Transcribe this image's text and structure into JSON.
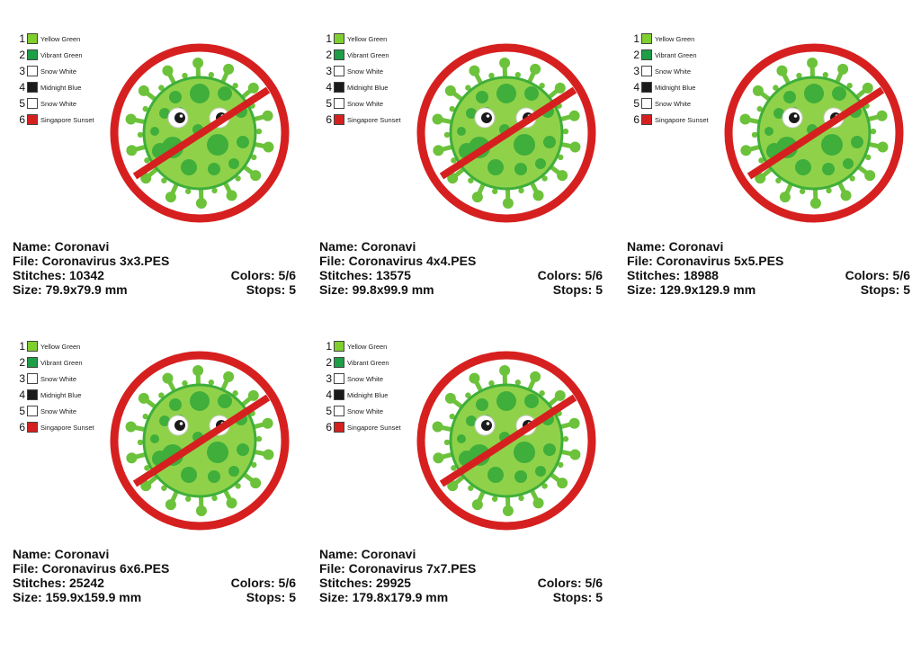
{
  "palette": [
    {
      "num": "1",
      "name": "Yellow Green",
      "color": "#7fcf2f"
    },
    {
      "num": "2",
      "name": "Vibrant Green",
      "color": "#1e9e46"
    },
    {
      "num": "3",
      "name": "Snow White",
      "color": "#ffffff"
    },
    {
      "num": "4",
      "name": "Midnight Blue",
      "color": "#1a1a1a"
    },
    {
      "num": "5",
      "name": "Snow White",
      "color": "#ffffff"
    },
    {
      "num": "6",
      "name": "Singapore Sunset",
      "color": "#d62020"
    }
  ],
  "cards": [
    {
      "name": "Name: Coronavi",
      "file": "File: Coronavirus 3x3.PES",
      "stitches": "Stitches: 10342",
      "colors": "Colors: 5/6",
      "size": "Size: 79.9x79.9 mm",
      "stops": "Stops: 5"
    },
    {
      "name": "Name: Coronavi",
      "file": "File: Coronavirus 4x4.PES",
      "stitches": "Stitches: 13575",
      "colors": "Colors: 5/6",
      "size": "Size: 99.8x99.9 mm",
      "stops": "Stops: 5"
    },
    {
      "name": "Name: Coronavi",
      "file": "File: Coronavirus 5x5.PES",
      "stitches": "Stitches: 18988",
      "colors": "Colors: 5/6",
      "size": "Size: 129.9x129.9 mm",
      "stops": "Stops: 5"
    },
    {
      "name": "Name: Coronavi",
      "file": "File: Coronavirus 6x6.PES",
      "stitches": "Stitches: 25242",
      "colors": "Colors: 5/6",
      "size": "Size: 159.9x159.9 mm",
      "stops": "Stops: 5"
    },
    {
      "name": "Name: Coronavi",
      "file": "File: Coronavirus 7x7.PES",
      "stitches": "Stitches: 29925",
      "colors": "Colors: 5/6",
      "size": "Size: 179.8x179.9 mm",
      "stops": "Stops: 5"
    }
  ],
  "colors": {
    "virus_body": "#8fd24a",
    "virus_spot": "#3fae3a",
    "virus_spike": "#6cc23a",
    "ring": "#d62020",
    "ring_border": "#b01818"
  }
}
